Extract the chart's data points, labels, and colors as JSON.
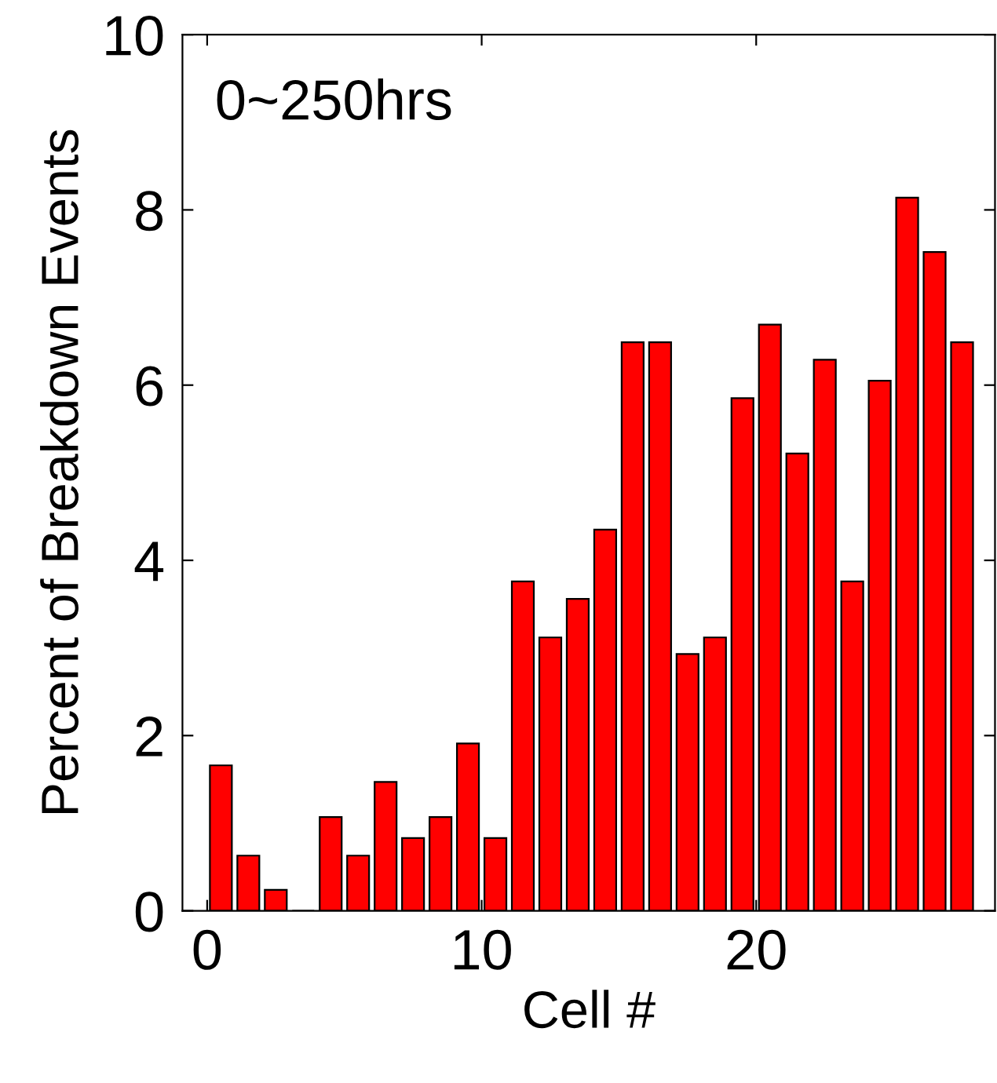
{
  "chart_data": {
    "type": "bar",
    "x": [
      0.5,
      1.5,
      2.5,
      3.5,
      4.5,
      5.5,
      6.5,
      7.5,
      8.5,
      9.5,
      10.5,
      11.5,
      12.5,
      13.5,
      14.5,
      15.5,
      16.5,
      17.5,
      18.5,
      19.5,
      20.5,
      21.5,
      22.5,
      23.5,
      24.5,
      25.5,
      26.5,
      27.5
    ],
    "values": [
      1.66,
      0.63,
      0.24,
      0,
      1.07,
      0.63,
      1.47,
      0.83,
      1.07,
      1.91,
      0.83,
      3.76,
      3.12,
      3.56,
      4.35,
      6.49,
      6.49,
      2.93,
      3.12,
      5.85,
      6.69,
      5.22,
      6.29,
      3.76,
      6.05,
      8.14,
      7.52,
      6.49
    ],
    "color": "#ff0000",
    "xlabel": "Cell #",
    "ylabel": "Percent of Breakdown Events",
    "annotations": [
      "0~250hrs"
    ],
    "xlim": [
      -0.9,
      28.7
    ],
    "xticks": [
      0,
      10,
      20
    ],
    "ylim": [
      0,
      10
    ],
    "yticks": [
      0,
      2,
      4,
      6,
      8,
      10
    ],
    "grid": false,
    "legend": false
  }
}
